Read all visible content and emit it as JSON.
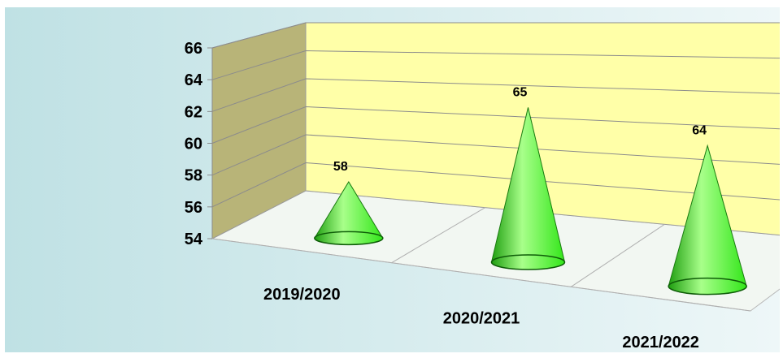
{
  "chart_data": {
    "type": "bar",
    "subtype": "3d-cone",
    "title": "",
    "xlabel": "",
    "ylabel": "",
    "categories": [
      "2019/2020",
      "2020/2021",
      "2021/2022"
    ],
    "values": [
      58,
      65,
      64
    ],
    "data_labels": [
      "58",
      "65",
      "64"
    ],
    "ylim": [
      54,
      66
    ],
    "yticks": [
      "54",
      "56",
      "58",
      "60",
      "62",
      "64",
      "66"
    ],
    "grid": true,
    "legend": "none",
    "colors": {
      "cone": "#33e61a",
      "cone_highlight": "#a8ff8a",
      "cone_shadow": "#1f9e10",
      "back_wall": "#ffffa8",
      "side_wall": "#b8b478",
      "floor": "#f2f7f2",
      "background_left": "#bfe1e4",
      "background_right": "#eef7f8"
    }
  }
}
